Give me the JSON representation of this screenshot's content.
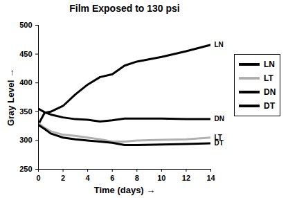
{
  "chart_data": {
    "type": "line",
    "title": "Film Exposed to 130 psi",
    "x_label": "Time (days)",
    "y_label": "Gray Level",
    "x": [
      0,
      0.5,
      1,
      2,
      3,
      4,
      5,
      6,
      7,
      8,
      10,
      12,
      14
    ],
    "series": [
      {
        "name": "LN",
        "color": "#000000",
        "values": [
          328,
          348,
          350,
          360,
          380,
          397,
          410,
          415,
          430,
          437,
          445,
          455,
          466
        ]
      },
      {
        "name": "LT",
        "color": "#b0b0b0",
        "values": [
          330,
          322,
          316,
          310,
          308,
          305,
          302,
          298,
          298,
          300,
          301,
          302,
          305
        ]
      },
      {
        "name": "DN",
        "color": "#000000",
        "values": [
          355,
          349,
          345,
          340,
          337,
          336,
          333,
          335,
          338,
          338,
          338,
          337,
          337
        ]
      },
      {
        "name": "DT",
        "color": "#000000",
        "values": [
          327,
          320,
          312,
          305,
          302,
          300,
          298,
          296,
          292,
          292,
          293,
          294,
          295
        ]
      }
    ],
    "xlim": [
      0,
      14
    ],
    "xticks": [
      0,
      2,
      4,
      6,
      8,
      10,
      12,
      14
    ],
    "ylim": [
      250,
      500
    ],
    "yticks": [
      250,
      300,
      350,
      400,
      450,
      500
    ],
    "grid": false,
    "legend": "right"
  }
}
